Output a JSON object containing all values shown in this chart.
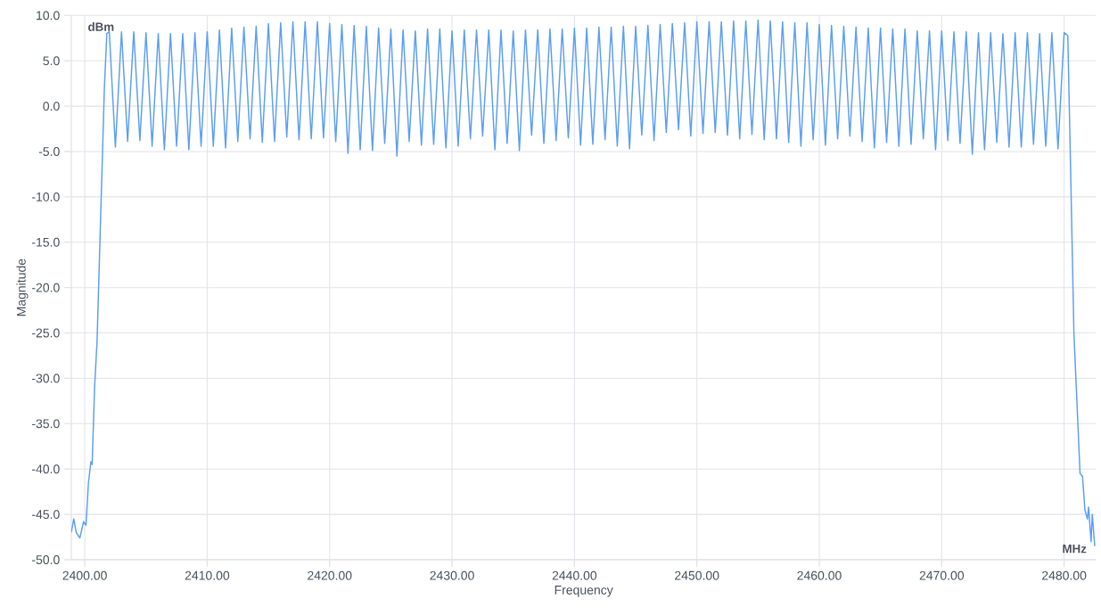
{
  "chart_data": {
    "type": "line",
    "xlabel": "Frequency",
    "ylabel": "Magnitude",
    "annotations": [
      "dBm",
      "MHz"
    ],
    "xlim": [
      2398.9,
      2482.6
    ],
    "ylim": [
      -50,
      10
    ],
    "xticks": [
      {
        "value": 2400,
        "label": "2400.00"
      },
      {
        "value": 2410,
        "label": "2410.00"
      },
      {
        "value": 2420,
        "label": "2420.00"
      },
      {
        "value": 2430,
        "label": "2430.00"
      },
      {
        "value": 2440,
        "label": "2440.00"
      },
      {
        "value": 2450,
        "label": "2450.00"
      },
      {
        "value": 2460,
        "label": "2460.00"
      },
      {
        "value": 2470,
        "label": "2470.00"
      },
      {
        "value": 2480,
        "label": "2480.00"
      }
    ],
    "yticks": [
      {
        "value": 10,
        "label": "10.0"
      },
      {
        "value": 5,
        "label": "5.0"
      },
      {
        "value": 0,
        "label": "0.0"
      },
      {
        "value": -5,
        "label": "-5.0"
      },
      {
        "value": -10,
        "label": "-10.0"
      },
      {
        "value": -15,
        "label": "-15.0"
      },
      {
        "value": -20,
        "label": "-20.0"
      },
      {
        "value": -25,
        "label": "-25.0"
      },
      {
        "value": -30,
        "label": "-30.0"
      },
      {
        "value": -35,
        "label": "-35.0"
      },
      {
        "value": -40,
        "label": "-40.0"
      },
      {
        "value": -45,
        "label": "-45.0"
      },
      {
        "value": -50,
        "label": "-50.0"
      }
    ],
    "grid": true,
    "marker": "none",
    "line_style": "solid",
    "series": [
      {
        "color": "#5a9ef5",
        "x": [
          2398.9,
          2399.1,
          2399.3,
          2399.6,
          2399.9,
          2400.1,
          2400.3,
          2400.5,
          2400.6,
          2400.8,
          2401.0,
          2401.3,
          2401.6,
          2401.8,
          2402,
          2402.5,
          2403,
          2403.5,
          2404,
          2404.5,
          2405,
          2405.5,
          2406,
          2406.5,
          2407,
          2407.5,
          2408,
          2408.5,
          2409,
          2409.5,
          2410,
          2410.5,
          2411,
          2411.5,
          2412,
          2412.5,
          2413,
          2413.5,
          2414,
          2414.5,
          2415,
          2415.5,
          2416,
          2416.5,
          2417,
          2417.5,
          2418,
          2418.5,
          2419,
          2419.5,
          2420,
          2420.5,
          2421,
          2421.5,
          2422,
          2422.5,
          2423,
          2423.5,
          2424,
          2424.5,
          2425,
          2425.5,
          2426,
          2426.5,
          2427,
          2427.5,
          2428,
          2428.5,
          2429,
          2429.5,
          2430,
          2430.5,
          2431,
          2431.5,
          2432,
          2432.5,
          2433,
          2433.5,
          2434,
          2434.5,
          2435,
          2435.5,
          2436,
          2436.5,
          2437,
          2437.5,
          2438,
          2438.5,
          2439,
          2439.5,
          2440,
          2440.5,
          2441,
          2441.5,
          2442,
          2442.5,
          2443,
          2443.5,
          2444,
          2444.5,
          2445,
          2445.5,
          2446,
          2446.5,
          2447,
          2447.5,
          2448,
          2448.5,
          2449,
          2449.5,
          2450,
          2450.5,
          2451,
          2451.5,
          2452,
          2452.5,
          2453,
          2453.5,
          2454,
          2454.5,
          2455,
          2455.5,
          2456,
          2456.5,
          2457,
          2457.5,
          2458,
          2458.5,
          2459,
          2459.5,
          2460,
          2460.5,
          2461,
          2461.5,
          2462,
          2462.5,
          2463,
          2463.5,
          2464,
          2464.5,
          2465,
          2465.5,
          2466,
          2466.5,
          2467,
          2467.5,
          2468,
          2468.5,
          2469,
          2469.5,
          2470,
          2470.5,
          2471,
          2471.5,
          2472,
          2472.5,
          2473,
          2473.5,
          2474,
          2474.5,
          2475,
          2475.5,
          2476,
          2476.5,
          2477,
          2477.5,
          2478,
          2478.5,
          2479,
          2479.5,
          2480,
          2480.3,
          2480.5,
          2480.8,
          2481.3,
          2481.5,
          2481.7,
          2481.9,
          2482.0,
          2482.2,
          2482.3,
          2482.5
        ],
        "values": [
          -47,
          -45.5,
          -47,
          -47.6,
          -45.8,
          -46.2,
          -41.5,
          -39.2,
          -39.5,
          -31,
          -26,
          -12,
          2,
          8.0,
          8.2,
          -4.5,
          8.2,
          -3.9,
          8.2,
          -3.8,
          8.1,
          -4.4,
          8.0,
          -4.8,
          8.0,
          -4.4,
          8.0,
          -4.8,
          8.1,
          -4.4,
          8.2,
          -4.4,
          8.4,
          -4.6,
          8.6,
          -3.9,
          8.7,
          -3.6,
          8.8,
          -4.0,
          9.1,
          -3.9,
          9.2,
          -3.4,
          9.3,
          -3.7,
          9.3,
          -3.6,
          9.3,
          -3.5,
          9.1,
          -3.9,
          9.0,
          -5.2,
          8.9,
          -4.8,
          8.8,
          -4.9,
          8.6,
          -4.1,
          8.5,
          -5.5,
          8.4,
          -3.9,
          8.3,
          -4.3,
          8.5,
          -4.2,
          8.5,
          -4.6,
          8.3,
          -4.4,
          8.4,
          -3.6,
          8.4,
          -3.3,
          8.4,
          -4.8,
          8.4,
          -4.1,
          8.3,
          -4.9,
          8.4,
          -3.2,
          8.4,
          -4.1,
          8.5,
          -3.8,
          8.5,
          -3.5,
          8.6,
          -4.3,
          8.6,
          -4.2,
          8.7,
          -3.7,
          8.7,
          -4.4,
          8.8,
          -4.7,
          8.8,
          -3.2,
          8.9,
          -3.8,
          9.0,
          -2.9,
          9.1,
          -2.6,
          9.2,
          -3.3,
          9.3,
          -3.0,
          9.3,
          -2.9,
          9.3,
          -3.2,
          9.4,
          -3.6,
          9.4,
          -3.1,
          9.5,
          -3.7,
          9.4,
          -3.6,
          9.3,
          -4.0,
          9.2,
          -4.4,
          9.2,
          -3.7,
          9.0,
          -4.3,
          8.9,
          -3.6,
          8.8,
          -3.3,
          8.7,
          -3.9,
          8.6,
          -4.6,
          8.6,
          -4.0,
          8.5,
          -4.4,
          8.5,
          -4.2,
          8.3,
          -3.6,
          8.3,
          -4.8,
          8.3,
          -3.8,
          8.2,
          -4.1,
          8.2,
          -5.3,
          8.1,
          -4.8,
          8.1,
          -4.0,
          8.0,
          -4.5,
          8.1,
          -4.5,
          8.1,
          -4.2,
          8.0,
          -4.4,
          8.1,
          -4.7,
          8.1,
          7.8,
          -5,
          -25,
          -40.5,
          -40.8,
          -44.5,
          -45.5,
          -44.2,
          -48,
          -45,
          -48.5
        ]
      }
    ]
  }
}
